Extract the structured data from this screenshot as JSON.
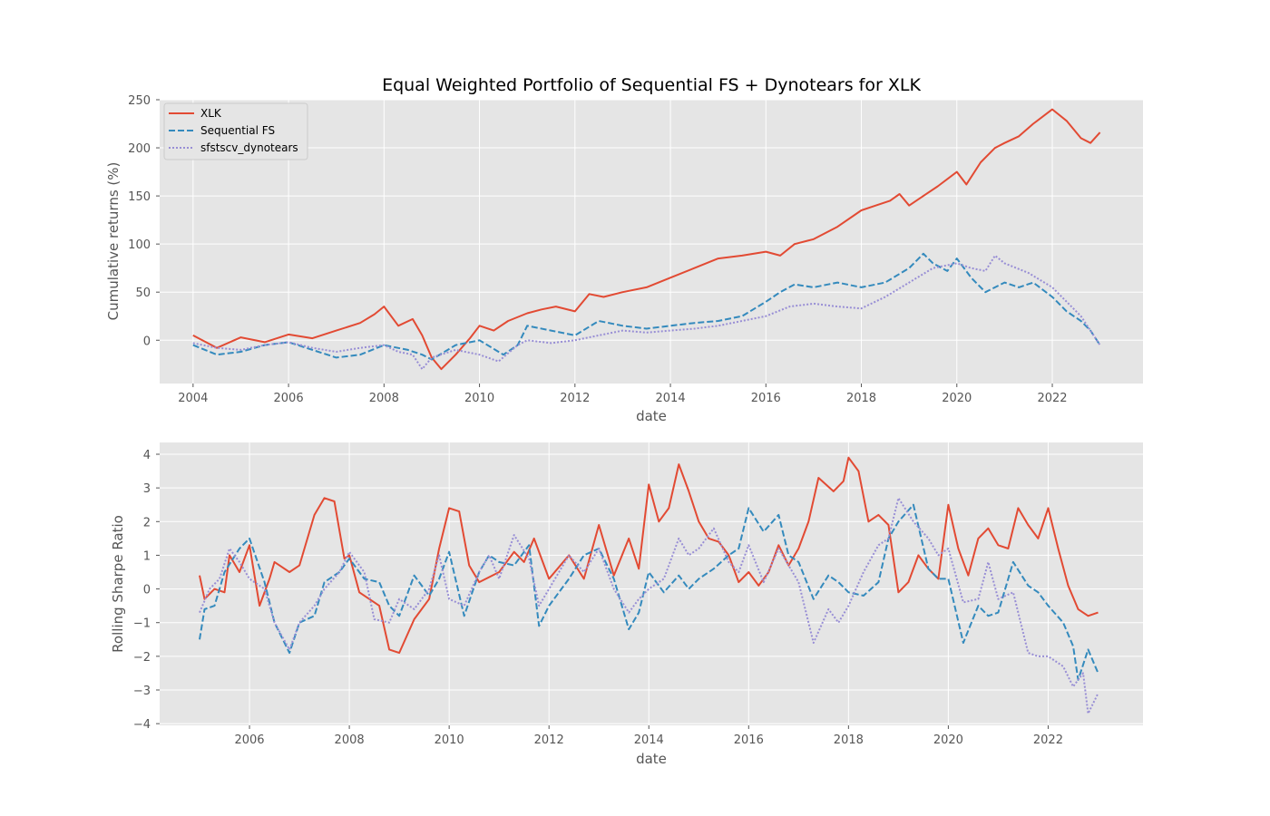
{
  "title": "Equal Weighted Portfolio of Sequential FS + Dynotears for XLK",
  "colors": {
    "xlk": "#e24a33",
    "sequential_fs": "#348abd",
    "sfstscv_dynotears": "#988ed5",
    "axes_bg": "#e5e5e5",
    "grid": "#ffffff"
  },
  "chart_data": [
    {
      "type": "line",
      "title": "Equal Weighted Portfolio of Sequential FS + Dynotears for XLK",
      "xlabel": "date",
      "ylabel": "Cumulative returns (%)",
      "xlim": [
        2003.3,
        2023.9
      ],
      "ylim": [
        -45,
        250
      ],
      "xticks": [
        2004,
        2006,
        2008,
        2010,
        2012,
        2014,
        2016,
        2018,
        2020,
        2022
      ],
      "xtick_labels": [
        "2004",
        "2006",
        "2008",
        "2010",
        "2012",
        "2014",
        "2016",
        "2018",
        "2020",
        "2022"
      ],
      "yticks": [
        0,
        50,
        100,
        150,
        200,
        250
      ],
      "ytick_labels": [
        "0",
        "50",
        "100",
        "150",
        "200",
        "250"
      ],
      "grid": true,
      "legend": "upper-left",
      "series": [
        {
          "name": "XLK",
          "style": "solid",
          "x": [
            2004.0,
            2004.5,
            2005.0,
            2005.5,
            2006.0,
            2006.5,
            2007.0,
            2007.5,
            2007.8,
            2008.0,
            2008.3,
            2008.6,
            2008.8,
            2009.0,
            2009.2,
            2009.5,
            2009.8,
            2010.0,
            2010.3,
            2010.6,
            2011.0,
            2011.3,
            2011.6,
            2012.0,
            2012.3,
            2012.6,
            2013.0,
            2013.5,
            2014.0,
            2014.5,
            2015.0,
            2015.5,
            2016.0,
            2016.3,
            2016.6,
            2017.0,
            2017.5,
            2018.0,
            2018.3,
            2018.6,
            2018.8,
            2019.0,
            2019.3,
            2019.6,
            2020.0,
            2020.2,
            2020.5,
            2020.8,
            2021.0,
            2021.3,
            2021.6,
            2022.0,
            2022.3,
            2022.6,
            2022.8,
            2023.0
          ],
          "y": [
            5,
            -8,
            3,
            -2,
            6,
            2,
            10,
            18,
            27,
            35,
            15,
            22,
            5,
            -18,
            -30,
            -15,
            2,
            15,
            10,
            20,
            28,
            32,
            35,
            30,
            48,
            45,
            50,
            55,
            65,
            75,
            85,
            88,
            92,
            88,
            100,
            105,
            118,
            135,
            140,
            145,
            152,
            140,
            150,
            160,
            175,
            162,
            185,
            200,
            205,
            212,
            225,
            240,
            228,
            210,
            205,
            216
          ]
        },
        {
          "name": "Sequential FS",
          "style": "dashed",
          "x": [
            2004.0,
            2004.5,
            2005.0,
            2005.5,
            2006.0,
            2006.5,
            2007.0,
            2007.5,
            2008.0,
            2008.5,
            2008.8,
            2009.0,
            2009.5,
            2010.0,
            2010.5,
            2010.8,
            2011.0,
            2011.5,
            2012.0,
            2012.5,
            2013.0,
            2013.5,
            2014.0,
            2014.5,
            2015.0,
            2015.5,
            2016.0,
            2016.3,
            2016.6,
            2017.0,
            2017.5,
            2018.0,
            2018.5,
            2019.0,
            2019.3,
            2019.5,
            2019.8,
            2020.0,
            2020.3,
            2020.6,
            2020.8,
            2021.0,
            2021.3,
            2021.6,
            2022.0,
            2022.3,
            2022.6,
            2022.8,
            2023.0
          ],
          "y": [
            -5,
            -15,
            -12,
            -5,
            -2,
            -10,
            -18,
            -15,
            -5,
            -10,
            -15,
            -20,
            -5,
            0,
            -15,
            -5,
            15,
            10,
            5,
            20,
            15,
            12,
            15,
            18,
            20,
            25,
            40,
            50,
            58,
            55,
            60,
            55,
            60,
            75,
            90,
            80,
            72,
            85,
            65,
            50,
            55,
            60,
            55,
            60,
            45,
            30,
            20,
            10,
            -5
          ]
        },
        {
          "name": "sfstscv_dynotears",
          "style": "dotted",
          "x": [
            2004.0,
            2004.5,
            2005.0,
            2005.5,
            2006.0,
            2006.5,
            2007.0,
            2007.5,
            2008.0,
            2008.3,
            2008.6,
            2008.8,
            2009.0,
            2009.5,
            2010.0,
            2010.4,
            2010.8,
            2011.0,
            2011.5,
            2012.0,
            2012.5,
            2013.0,
            2013.5,
            2014.0,
            2014.5,
            2015.0,
            2015.5,
            2016.0,
            2016.5,
            2017.0,
            2017.5,
            2018.0,
            2018.5,
            2019.0,
            2019.5,
            2020.0,
            2020.3,
            2020.6,
            2020.8,
            2021.0,
            2021.5,
            2022.0,
            2022.3,
            2022.6,
            2022.8,
            2023.0
          ],
          "y": [
            -3,
            -8,
            -10,
            -5,
            -2,
            -8,
            -12,
            -8,
            -5,
            -12,
            -15,
            -30,
            -18,
            -10,
            -15,
            -22,
            -5,
            0,
            -3,
            0,
            5,
            10,
            8,
            10,
            12,
            15,
            20,
            25,
            35,
            38,
            35,
            33,
            45,
            60,
            75,
            80,
            75,
            72,
            88,
            80,
            70,
            55,
            40,
            25,
            10,
            -5
          ]
        }
      ]
    },
    {
      "type": "line",
      "title": "",
      "xlabel": "date",
      "ylabel": "Rolling Sharpe Ratio",
      "xlim": [
        2004.2,
        2023.9
      ],
      "ylim": [
        -4.05,
        4.35
      ],
      "xticks": [
        2006,
        2008,
        2010,
        2012,
        2014,
        2016,
        2018,
        2020,
        2022
      ],
      "xtick_labels": [
        "2006",
        "2008",
        "2010",
        "2012",
        "2014",
        "2016",
        "2018",
        "2020",
        "2022"
      ],
      "yticks": [
        4,
        3,
        2,
        1,
        0,
        -1,
        -2,
        -3,
        -4
      ],
      "ytick_labels": [
        "4",
        "3",
        "2",
        "1",
        "0",
        "−1",
        "−2",
        "−3",
        "−4"
      ],
      "grid": true,
      "series": [
        {
          "name": "XLK",
          "style": "solid",
          "x": [
            2005.0,
            2005.1,
            2005.3,
            2005.5,
            2005.6,
            2005.8,
            2006.0,
            2006.2,
            2006.4,
            2006.5,
            2006.6,
            2006.8,
            2007.0,
            2007.3,
            2007.5,
            2007.7,
            2007.9,
            2008.0,
            2008.2,
            2008.4,
            2008.6,
            2008.8,
            2009.0,
            2009.3,
            2009.6,
            2009.8,
            2010.0,
            2010.2,
            2010.4,
            2010.6,
            2011.0,
            2011.3,
            2011.5,
            2011.7,
            2012.0,
            2012.4,
            2012.7,
            2013.0,
            2013.3,
            2013.6,
            2013.8,
            2014.0,
            2014.2,
            2014.4,
            2014.6,
            2014.8,
            2015.0,
            2015.2,
            2015.4,
            2015.6,
            2015.8,
            2016.0,
            2016.2,
            2016.4,
            2016.6,
            2016.8,
            2017.0,
            2017.2,
            2017.4,
            2017.7,
            2017.9,
            2018.0,
            2018.2,
            2018.4,
            2018.6,
            2018.8,
            2019.0,
            2019.2,
            2019.4,
            2019.6,
            2019.8,
            2020.0,
            2020.2,
            2020.4,
            2020.6,
            2020.8,
            2021.0,
            2021.2,
            2021.4,
            2021.6,
            2021.8,
            2022.0,
            2022.2,
            2022.4,
            2022.6,
            2022.8,
            2023.0
          ],
          "y": [
            0.4,
            -0.3,
            0.0,
            -0.1,
            1.0,
            0.5,
            1.3,
            -0.5,
            0.3,
            0.8,
            0.7,
            0.5,
            0.7,
            2.2,
            2.7,
            2.6,
            0.9,
            1.0,
            -0.1,
            -0.3,
            -0.5,
            -1.8,
            -1.9,
            -0.9,
            -0.3,
            1.2,
            2.4,
            2.3,
            0.7,
            0.2,
            0.5,
            1.1,
            0.8,
            1.5,
            0.3,
            1.0,
            0.3,
            1.9,
            0.4,
            1.5,
            0.6,
            3.1,
            2.0,
            2.4,
            3.7,
            2.9,
            2.0,
            1.5,
            1.4,
            1.0,
            0.2,
            0.5,
            0.1,
            0.5,
            1.3,
            0.7,
            1.2,
            2.0,
            3.3,
            2.9,
            3.2,
            3.9,
            3.5,
            2.0,
            2.2,
            1.9,
            -0.1,
            0.2,
            1.0,
            0.6,
            0.3,
            2.5,
            1.2,
            0.4,
            1.5,
            1.8,
            1.3,
            1.2,
            2.4,
            1.9,
            1.5,
            2.4,
            1.2,
            0.1,
            -0.6,
            -0.8,
            -0.7
          ]
        },
        {
          "name": "Sequential FS",
          "style": "dashed",
          "x": [
            2005.0,
            2005.1,
            2005.3,
            2005.5,
            2005.8,
            2006.0,
            2006.3,
            2006.5,
            2006.8,
            2007.0,
            2007.3,
            2007.5,
            2007.8,
            2008.0,
            2008.3,
            2008.6,
            2008.8,
            2009.0,
            2009.3,
            2009.6,
            2009.8,
            2010.0,
            2010.3,
            2010.6,
            2010.8,
            2011.0,
            2011.3,
            2011.6,
            2011.8,
            2012.0,
            2012.4,
            2012.7,
            2013.0,
            2013.3,
            2013.6,
            2013.8,
            2014.0,
            2014.3,
            2014.6,
            2014.8,
            2015.0,
            2015.3,
            2015.6,
            2015.8,
            2016.0,
            2016.3,
            2016.6,
            2016.8,
            2017.0,
            2017.3,
            2017.6,
            2017.8,
            2018.0,
            2018.3,
            2018.6,
            2018.8,
            2019.0,
            2019.3,
            2019.6,
            2019.8,
            2020.0,
            2020.3,
            2020.6,
            2020.8,
            2021.0,
            2021.3,
            2021.6,
            2021.8,
            2022.0,
            2022.3,
            2022.5,
            2022.6,
            2022.8,
            2023.0
          ],
          "y": [
            -1.5,
            -0.6,
            -0.5,
            0.5,
            1.2,
            1.5,
            0.2,
            -1.0,
            -1.9,
            -1.0,
            -0.8,
            0.2,
            0.5,
            0.9,
            0.3,
            0.2,
            -0.5,
            -0.8,
            0.4,
            -0.2,
            0.3,
            1.1,
            -0.8,
            0.5,
            1.0,
            0.8,
            0.7,
            1.3,
            -1.1,
            -0.5,
            0.3,
            1.0,
            1.2,
            0.3,
            -1.2,
            -0.7,
            0.5,
            -0.1,
            0.4,
            0.0,
            0.3,
            0.6,
            1.0,
            1.2,
            2.4,
            1.7,
            2.2,
            1.0,
            0.8,
            -0.3,
            0.4,
            0.2,
            -0.1,
            -0.2,
            0.2,
            1.5,
            2.0,
            2.5,
            0.6,
            0.3,
            0.3,
            -1.6,
            -0.5,
            -0.8,
            -0.7,
            0.8,
            0.1,
            -0.1,
            -0.5,
            -1.0,
            -1.7,
            -2.7,
            -1.8,
            -2.5
          ]
        },
        {
          "name": "sfstscv_dynotears",
          "style": "dotted",
          "x": [
            2005.0,
            2005.2,
            2005.4,
            2005.6,
            2005.8,
            2006.0,
            2006.3,
            2006.5,
            2006.8,
            2007.0,
            2007.3,
            2007.5,
            2007.8,
            2008.0,
            2008.3,
            2008.5,
            2008.8,
            2009.0,
            2009.3,
            2009.6,
            2009.8,
            2010.0,
            2010.3,
            2010.6,
            2010.8,
            2011.0,
            2011.3,
            2011.6,
            2011.8,
            2012.0,
            2012.4,
            2012.7,
            2013.0,
            2013.3,
            2013.6,
            2013.8,
            2014.0,
            2014.3,
            2014.6,
            2014.8,
            2015.0,
            2015.3,
            2015.6,
            2015.8,
            2016.0,
            2016.3,
            2016.6,
            2016.8,
            2017.0,
            2017.3,
            2017.6,
            2017.8,
            2018.0,
            2018.3,
            2018.6,
            2018.8,
            2019.0,
            2019.3,
            2019.6,
            2019.8,
            2020.0,
            2020.3,
            2020.6,
            2020.8,
            2021.0,
            2021.3,
            2021.6,
            2021.8,
            2022.0,
            2022.3,
            2022.5,
            2022.7,
            2022.8,
            2023.0
          ],
          "y": [
            -0.7,
            0.0,
            0.3,
            1.2,
            0.8,
            0.3,
            0.0,
            -1.0,
            -1.8,
            -1.0,
            -0.5,
            0.0,
            0.5,
            1.1,
            0.5,
            -0.9,
            -1.0,
            -0.3,
            -0.6,
            0.0,
            1.0,
            -0.3,
            -0.5,
            0.5,
            1.0,
            0.3,
            1.6,
            0.9,
            -0.5,
            0.0,
            1.0,
            0.5,
            1.2,
            0.0,
            -0.7,
            -0.3,
            0.0,
            0.3,
            1.5,
            1.0,
            1.2,
            1.8,
            0.8,
            0.5,
            1.3,
            0.2,
            1.2,
            0.7,
            0.2,
            -1.6,
            -0.6,
            -1.0,
            -0.5,
            0.5,
            1.3,
            1.5,
            2.7,
            2.0,
            1.5,
            1.0,
            1.2,
            -0.4,
            -0.3,
            0.8,
            -0.3,
            -0.1,
            -1.9,
            -2.0,
            -2.0,
            -2.3,
            -2.9,
            -2.5,
            -3.7,
            -3.1
          ]
        }
      ]
    }
  ]
}
